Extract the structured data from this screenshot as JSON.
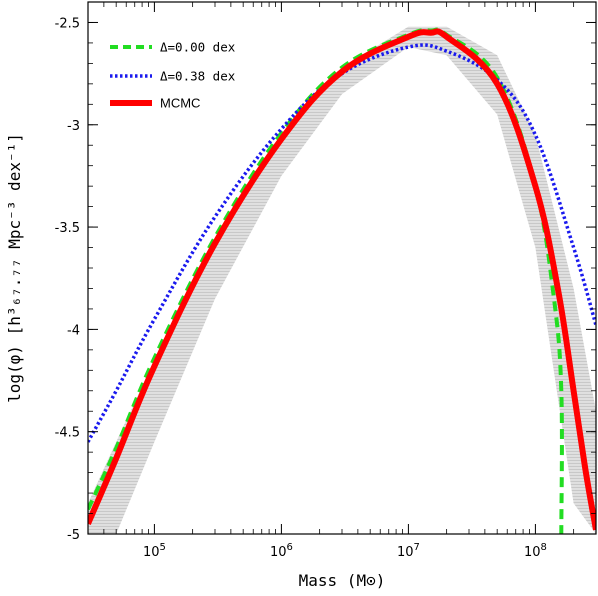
{
  "chart_data": {
    "type": "line",
    "title": "",
    "xlabel": "Mass (M⊙)",
    "ylabel": "log(φ) [h³₆₇.₇₇ Mpc⁻³ dex⁻¹]",
    "xscale": "log",
    "xlim": [
      30000.0,
      300000000.0
    ],
    "ylim": [
      -5,
      -2.4
    ],
    "x_ticks": [
      {
        "value": 100000,
        "base": "10",
        "exp": "5"
      },
      {
        "value": 1000000,
        "base": "10",
        "exp": "6"
      },
      {
        "value": 10000000,
        "base": "10",
        "exp": "7"
      },
      {
        "value": 100000000,
        "base": "10",
        "exp": "8"
      }
    ],
    "y_ticks": [
      {
        "value": -2.5,
        "label": "-2.5"
      },
      {
        "value": -3,
        "label": "-3"
      },
      {
        "value": -3.5,
        "label": "-3.5"
      },
      {
        "value": -4,
        "label": "-4"
      },
      {
        "value": -4.5,
        "label": "-4.5"
      },
      {
        "value": -5,
        "label": "-5"
      }
    ],
    "grid": false,
    "legend_position": "top-left",
    "band": {
      "color": "#c8c8c8",
      "x": [
        30000.0,
        50000.0,
        100000.0,
        300000.0,
        1000000.0,
        3000000.0,
        10000000.0,
        20000000.0,
        50000000.0,
        100000000.0,
        200000000.0,
        300000000.0
      ],
      "upper": [
        -4.85,
        -4.55,
        -4.15,
        -3.55,
        -3.05,
        -2.72,
        -2.52,
        -2.52,
        -2.66,
        -3.05,
        -3.8,
        -4.4
      ],
      "lower": [
        -5.0,
        -5.0,
        -4.55,
        -3.85,
        -3.25,
        -2.85,
        -2.62,
        -2.66,
        -2.95,
        -3.6,
        -4.85,
        -5.0
      ]
    },
    "series": [
      {
        "name": "Δ=0.00 dex",
        "color": "#22dd22",
        "style": "dashed",
        "x": [
          30000.0,
          50000.0,
          100000.0,
          300000.0,
          1000000.0,
          3000000.0,
          10000000.0,
          15000000.0,
          20000000.0,
          50000000.0,
          100000000.0,
          140000000.0,
          160000000.0,
          160000000.0
        ],
        "y": [
          -4.88,
          -4.58,
          -4.14,
          -3.55,
          -3.04,
          -2.72,
          -2.56,
          -2.54,
          -2.56,
          -2.77,
          -3.3,
          -3.85,
          -4.3,
          -5.0
        ]
      },
      {
        "name": "Δ=0.38 dex",
        "color": "#1a1aee",
        "style": "dotted",
        "x": [
          30000.0,
          50000.0,
          100000.0,
          300000.0,
          1000000.0,
          3000000.0,
          10000000.0,
          20000000.0,
          50000000.0,
          100000000.0,
          200000000.0,
          300000000.0
        ],
        "y": [
          -4.55,
          -4.3,
          -3.95,
          -3.45,
          -3.02,
          -2.75,
          -2.62,
          -2.64,
          -2.78,
          -3.05,
          -3.6,
          -3.98
        ]
      },
      {
        "name": "MCMC",
        "color": "#ff0000",
        "style": "solid",
        "x": [
          30000.0,
          50000.0,
          100000.0,
          300000.0,
          1000000.0,
          3000000.0,
          10000000.0,
          15000000.0,
          20000000.0,
          50000000.0,
          100000000.0,
          150000000.0,
          200000000.0,
          250000000.0,
          300000000.0
        ],
        "y": [
          -4.95,
          -4.63,
          -4.18,
          -3.58,
          -3.07,
          -2.74,
          -2.57,
          -2.55,
          -2.57,
          -2.8,
          -3.3,
          -3.8,
          -4.3,
          -4.7,
          -4.98
        ]
      }
    ]
  }
}
